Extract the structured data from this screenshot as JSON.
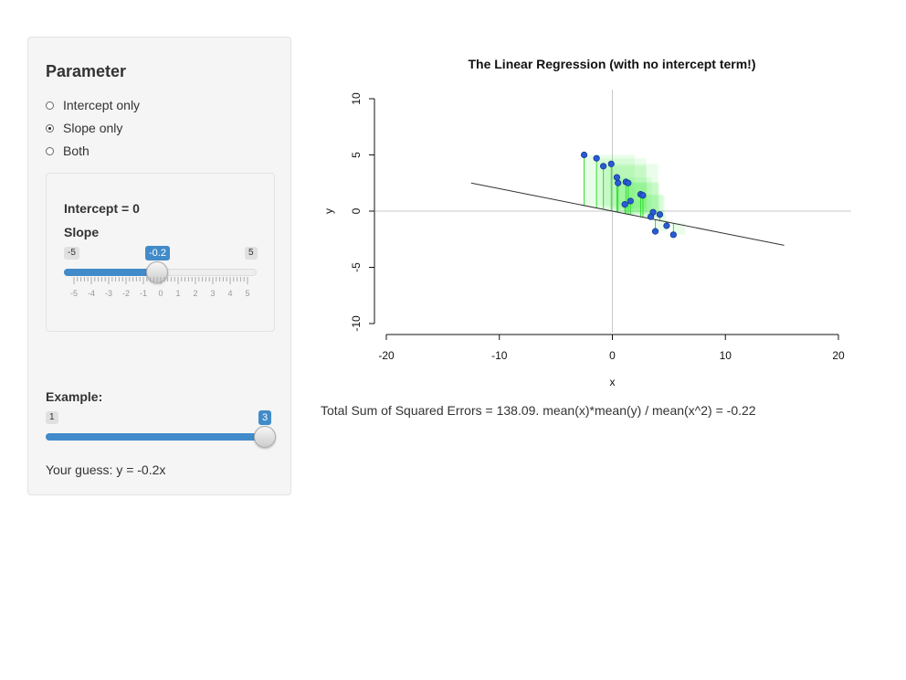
{
  "sidebar": {
    "heading": "Parameter",
    "radios": [
      {
        "label": "Intercept only",
        "checked": false
      },
      {
        "label": "Slope only",
        "checked": true
      },
      {
        "label": "Both",
        "checked": false
      }
    ],
    "intercept_label": "Intercept = 0",
    "slope_label": "Slope",
    "slope_slider": {
      "min": "-5",
      "max": "5",
      "value": "-0.2",
      "ticks": [
        "-5",
        "-4",
        "-3",
        "-2",
        "-1",
        "0",
        "1",
        "2",
        "3",
        "4",
        "5"
      ]
    },
    "example_label": "Example:",
    "example_slider": {
      "min": "1",
      "max": "3",
      "value": "3"
    },
    "guess_text": "Your guess: y = -0.2x"
  },
  "stats_text": "Total Sum of Squared Errors = 138.09. mean(x)*mean(y) / mean(x^2) = -0.22",
  "colors": {
    "accent": "#428bca",
    "point": "#2a5bd7",
    "residual": "#33dd33",
    "square": "#55ee55"
  },
  "chart_data": {
    "type": "scatter",
    "title": "The Linear Regression (with no intercept term!)",
    "xlabel": "x",
    "ylabel": "y",
    "xlim": [
      -20,
      20
    ],
    "ylim": [
      -10,
      10
    ],
    "xticks": [
      -20,
      -10,
      0,
      10,
      20
    ],
    "yticks": [
      -10,
      -5,
      0,
      5,
      10
    ],
    "fitted_line": {
      "slope": -0.2,
      "intercept": 0,
      "x_range": [
        -12.5,
        15.2
      ]
    },
    "points": [
      {
        "x": -2.5,
        "y": 5.0
      },
      {
        "x": -1.4,
        "y": 4.7
      },
      {
        "x": -0.8,
        "y": 4.0
      },
      {
        "x": -0.1,
        "y": 4.2
      },
      {
        "x": 0.4,
        "y": 3.0
      },
      {
        "x": 0.5,
        "y": 2.5
      },
      {
        "x": 1.2,
        "y": 2.6
      },
      {
        "x": 1.4,
        "y": 2.5
      },
      {
        "x": 2.5,
        "y": 1.5
      },
      {
        "x": 2.7,
        "y": 1.4
      },
      {
        "x": 1.6,
        "y": 0.9
      },
      {
        "x": 1.1,
        "y": 0.6
      },
      {
        "x": 3.6,
        "y": -0.1
      },
      {
        "x": 3.4,
        "y": -0.5
      },
      {
        "x": 4.2,
        "y": -0.3
      },
      {
        "x": 4.8,
        "y": -1.3
      },
      {
        "x": 3.8,
        "y": -1.8
      },
      {
        "x": 5.4,
        "y": -2.1
      }
    ]
  }
}
